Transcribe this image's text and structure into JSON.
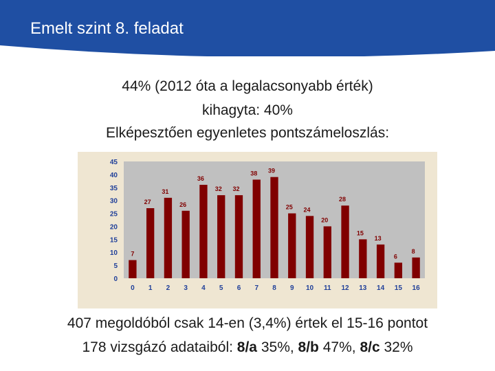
{
  "slide": {
    "title": "Emelt szint 8. feladat",
    "lines": [
      "44% (2012 óta a legalacsonyabb érték)",
      "kihagyta: 40%",
      "Elképesztően egyenletes pontszámeloszlás:"
    ],
    "footer_line1": "407 megoldóból csak 14-en (3,4%) értek el 15-16 pontot",
    "footer_line2": {
      "prefix": "178 vizsgázó adataiból: ",
      "a_label": "8/a",
      "a_value": " 35%, ",
      "b_label": "8/b",
      "b_value": " 47%, ",
      "c_label": "8/c",
      "c_value": " 32%"
    }
  },
  "colors": {
    "header": "#1f4fa3",
    "bar": "#800000",
    "plot_bg": "#c0c0c0",
    "chart_bg": "#efe6d2",
    "label": "#800000",
    "axis_text": "#1f3f99"
  },
  "chart_data": {
    "type": "bar",
    "categories": [
      "0",
      "1",
      "2",
      "3",
      "4",
      "5",
      "6",
      "7",
      "8",
      "9",
      "10",
      "11",
      "12",
      "13",
      "14",
      "15",
      "16"
    ],
    "values": [
      7,
      27,
      31,
      26,
      36,
      32,
      32,
      38,
      39,
      25,
      24,
      20,
      28,
      15,
      13,
      6,
      8
    ],
    "ylim": [
      0,
      45
    ],
    "yticks": [
      "0",
      "5",
      "10",
      "15",
      "20",
      "25",
      "30",
      "35",
      "40",
      "45"
    ],
    "data_labels": [
      "7",
      "27",
      "31",
      "26",
      "36",
      "32",
      "32",
      "38",
      "39",
      "25",
      "24",
      "20",
      "28",
      "15",
      "13",
      "6",
      "8"
    ],
    "legend": false,
    "grid": false
  }
}
